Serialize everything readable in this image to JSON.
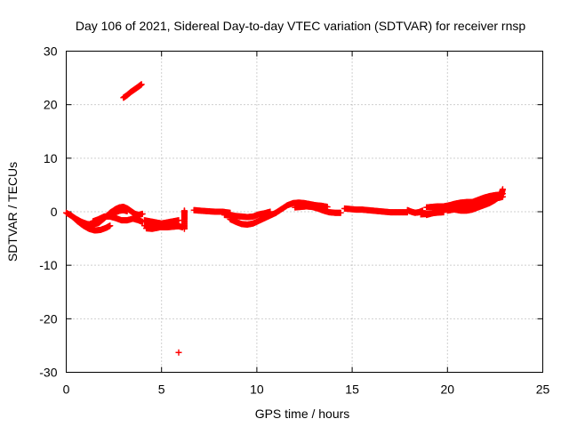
{
  "chart_data": {
    "type": "scatter",
    "title": "Day 106 of 2021, Sidereal Day-to-day VTEC variation (SDTVAR) for receiver rnsp",
    "xlabel": "GPS time / hours",
    "ylabel": "SDTVAR / TECUs",
    "xlim": [
      0,
      25
    ],
    "ylim": [
      -30,
      30
    ],
    "x_ticks": [
      0,
      5,
      10,
      15,
      20,
      25
    ],
    "y_ticks": [
      -30,
      -20,
      -10,
      0,
      10,
      20,
      30
    ],
    "x_tick_labels": [
      "0",
      "5",
      "10",
      "15",
      "20",
      "25"
    ],
    "y_tick_labels": [
      "-30",
      "-20",
      "-10",
      "0",
      "10",
      "20",
      "30"
    ],
    "grid": true,
    "marker": "plus",
    "series": [
      {
        "name": "SDTVAR",
        "color": "#ff0000",
        "segments": [
          [
            [
              0.0,
              -0.2
            ],
            [
              0.3,
              -0.8
            ],
            [
              0.6,
              -1.8
            ],
            [
              0.9,
              -2.6
            ],
            [
              1.2,
              -3.2
            ],
            [
              1.5,
              -3.5
            ],
            [
              1.8,
              -3.4
            ],
            [
              2.1,
              -3.0
            ],
            [
              2.3,
              -2.6
            ]
          ],
          [
            [
              0.2,
              -0.6
            ],
            [
              0.5,
              -1.3
            ],
            [
              0.8,
              -1.9
            ],
            [
              1.1,
              -2.3
            ],
            [
              1.4,
              -2.4
            ],
            [
              1.7,
              -2.1
            ],
            [
              2.0,
              -1.2
            ],
            [
              2.3,
              -0.2
            ],
            [
              2.6,
              0.5
            ],
            [
              2.8,
              0.8
            ],
            [
              3.0,
              0.9
            ],
            [
              3.2,
              0.6
            ],
            [
              3.4,
              0.1
            ],
            [
              3.6,
              -0.4
            ],
            [
              3.8,
              -0.6
            ],
            [
              4.0,
              -0.4
            ]
          ],
          [
            [
              1.4,
              -1.8
            ],
            [
              1.7,
              -1.4
            ],
            [
              2.0,
              -0.9
            ],
            [
              2.3,
              -0.9
            ],
            [
              2.6,
              -1.2
            ],
            [
              2.9,
              -1.6
            ],
            [
              3.2,
              -1.6
            ],
            [
              3.5,
              -1.3
            ],
            [
              3.8,
              -1.6
            ],
            [
              4.0,
              -1.9
            ]
          ],
          [
            [
              2.4,
              -0.4
            ],
            [
              2.6,
              -0.1
            ],
            [
              2.8,
              0.2
            ],
            [
              3.0,
              0.3
            ],
            [
              3.2,
              0.1
            ]
          ],
          [
            [
              3.0,
              21.3
            ],
            [
              3.2,
              21.8
            ],
            [
              3.4,
              22.4
            ],
            [
              3.6,
              22.9
            ],
            [
              3.8,
              23.4
            ],
            [
              3.95,
              23.8
            ]
          ],
          [
            [
              4.1,
              -1.6
            ],
            [
              4.4,
              -1.8
            ],
            [
              4.7,
              -2.0
            ],
            [
              5.0,
              -2.2
            ],
            [
              5.3,
              -2.0
            ],
            [
              5.6,
              -1.8
            ],
            [
              5.9,
              -1.6
            ]
          ],
          [
            [
              4.1,
              -2.6
            ],
            [
              4.4,
              -2.7
            ],
            [
              4.7,
              -2.8
            ],
            [
              5.0,
              -2.9
            ],
            [
              5.3,
              -2.9
            ],
            [
              5.6,
              -2.8
            ],
            [
              5.9,
              -2.7
            ],
            [
              6.1,
              -2.9
            ]
          ],
          [
            [
              4.2,
              -3.1
            ],
            [
              4.5,
              -3.2
            ],
            [
              4.8,
              -3.0
            ],
            [
              5.1,
              -2.7
            ],
            [
              5.4,
              -2.5
            ],
            [
              5.8,
              -2.4
            ]
          ],
          [
            [
              6.2,
              -3.2
            ],
            [
              6.2,
              -1.5
            ],
            [
              6.2,
              -0.6
            ],
            [
              6.2,
              0.2
            ]
          ],
          [
            [
              5.9,
              -26.3
            ]
          ],
          [
            [
              6.7,
              0.3
            ],
            [
              7.0,
              0.2
            ],
            [
              7.4,
              0.1
            ],
            [
              7.8,
              0.0
            ],
            [
              8.2,
              0.0
            ],
            [
              8.6,
              -0.2
            ]
          ],
          [
            [
              8.3,
              -0.6
            ],
            [
              8.6,
              -0.7
            ],
            [
              8.9,
              -0.8
            ],
            [
              9.2,
              -0.9
            ],
            [
              9.5,
              -1.0
            ],
            [
              9.8,
              -0.9
            ],
            [
              10.1,
              -0.5
            ],
            [
              10.4,
              -0.3
            ],
            [
              10.7,
              0.0
            ]
          ],
          [
            [
              8.6,
              -1.4
            ],
            [
              8.9,
              -1.9
            ],
            [
              9.2,
              -2.3
            ],
            [
              9.5,
              -2.4
            ],
            [
              9.8,
              -2.2
            ],
            [
              10.1,
              -1.7
            ],
            [
              10.4,
              -1.2
            ],
            [
              10.7,
              -0.7
            ],
            [
              11.0,
              -0.2
            ]
          ],
          [
            [
              11.0,
              -0.2
            ],
            [
              11.3,
              0.5
            ],
            [
              11.6,
              1.2
            ],
            [
              11.9,
              1.6
            ],
            [
              12.2,
              1.7
            ],
            [
              12.5,
              1.6
            ],
            [
              12.8,
              1.4
            ],
            [
              13.1,
              1.2
            ],
            [
              13.4,
              1.1
            ],
            [
              13.7,
              0.9
            ]
          ],
          [
            [
              12.0,
              0.8
            ],
            [
              12.3,
              0.9
            ],
            [
              12.6,
              1.0
            ],
            [
              12.9,
              0.9
            ],
            [
              13.2,
              0.6
            ],
            [
              13.5,
              0.2
            ],
            [
              13.8,
              -0.1
            ],
            [
              14.1,
              -0.2
            ],
            [
              14.4,
              -0.2
            ]
          ],
          [
            [
              14.6,
              0.6
            ],
            [
              14.9,
              0.5
            ],
            [
              15.2,
              0.4
            ],
            [
              15.5,
              0.4
            ],
            [
              15.8,
              0.3
            ],
            [
              16.1,
              0.2
            ],
            [
              16.4,
              0.1
            ],
            [
              16.7,
              0.0
            ],
            [
              17.0,
              -0.1
            ],
            [
              17.3,
              -0.1
            ],
            [
              17.6,
              -0.1
            ],
            [
              17.9,
              -0.1
            ]
          ],
          [
            [
              17.9,
              0.3
            ],
            [
              18.1,
              0.0
            ],
            [
              18.3,
              -0.2
            ],
            [
              18.5,
              -0.1
            ],
            [
              18.7,
              0.2
            ]
          ],
          [
            [
              18.9,
              -0.6
            ],
            [
              19.2,
              -0.3
            ],
            [
              19.5,
              0.1
            ],
            [
              19.8,
              0.5
            ],
            [
              20.1,
              0.6
            ],
            [
              20.4,
              0.4
            ],
            [
              20.7,
              0.2
            ],
            [
              21.0,
              0.2
            ],
            [
              21.3,
              0.4
            ],
            [
              21.6,
              0.8
            ],
            [
              21.9,
              1.2
            ],
            [
              22.2,
              1.6
            ],
            [
              22.5,
              2.2
            ],
            [
              22.8,
              3.0
            ],
            [
              22.9,
              4.2
            ]
          ],
          [
            [
              18.9,
              0.8
            ],
            [
              19.2,
              0.9
            ],
            [
              19.5,
              1.0
            ],
            [
              19.8,
              1.0
            ],
            [
              20.1,
              1.2
            ],
            [
              20.4,
              1.5
            ],
            [
              20.7,
              1.7
            ],
            [
              21.0,
              1.8
            ],
            [
              21.3,
              1.8
            ],
            [
              21.6,
              2.2
            ],
            [
              21.9,
              2.6
            ],
            [
              22.2,
              2.9
            ],
            [
              22.5,
              3.1
            ],
            [
              22.8,
              3.2
            ],
            [
              22.9,
              3.4
            ]
          ],
          [
            [
              20.0,
              0.2
            ],
            [
              20.3,
              0.4
            ],
            [
              20.6,
              0.6
            ],
            [
              20.9,
              1.0
            ],
            [
              21.2,
              1.0
            ],
            [
              21.5,
              1.4
            ],
            [
              21.8,
              1.6
            ],
            [
              22.1,
              2.0
            ],
            [
              22.4,
              2.5
            ],
            [
              22.7,
              2.6
            ],
            [
              22.9,
              2.8
            ]
          ],
          [
            [
              18.6,
              -0.5
            ],
            [
              19.0,
              -0.4
            ],
            [
              19.4,
              -0.2
            ],
            [
              19.8,
              -0.1
            ]
          ]
        ]
      }
    ]
  }
}
